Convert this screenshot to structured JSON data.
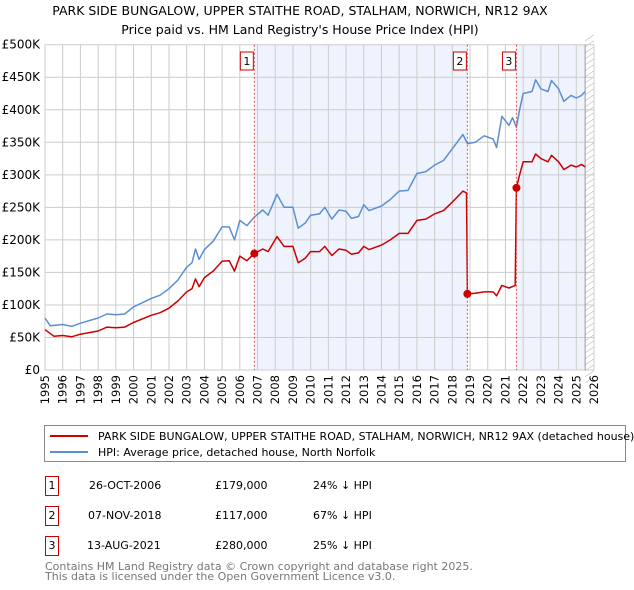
{
  "chart_data": {
    "type": "line",
    "title": "PARK SIDE BUNGALOW, UPPER STAITHE ROAD, STALHAM, NORWICH, NR12 9AX",
    "subtitle": "Price paid vs. HM Land Registry's House Price Index (HPI)",
    "xlim": [
      1995,
      2026
    ],
    "ylim": [
      0,
      500000
    ],
    "x_ticks": [
      "1995",
      "1996",
      "1997",
      "1998",
      "1999",
      "2000",
      "2001",
      "2002",
      "2003",
      "2004",
      "2005",
      "2006",
      "2007",
      "2008",
      "2009",
      "2010",
      "2011",
      "2012",
      "2013",
      "2014",
      "2015",
      "2016",
      "2017",
      "2018",
      "2019",
      "2020",
      "2021",
      "2022",
      "2023",
      "2024",
      "2025",
      "2026"
    ],
    "y_ticks": [
      {
        "v": 0,
        "label": "£0"
      },
      {
        "v": 50000,
        "label": "£50K"
      },
      {
        "v": 100000,
        "label": "£100K"
      },
      {
        "v": 150000,
        "label": "£150K"
      },
      {
        "v": 200000,
        "label": "£200K"
      },
      {
        "v": 250000,
        "label": "£250K"
      },
      {
        "v": 300000,
        "label": "£300K"
      },
      {
        "v": 350000,
        "label": "£350K"
      },
      {
        "v": 400000,
        "label": "£400K"
      },
      {
        "v": 450000,
        "label": "£450K"
      },
      {
        "v": 500000,
        "label": "£500K"
      }
    ],
    "grid": true,
    "shaded_ranges": [
      [
        2006.82,
        2018.85
      ],
      [
        2021.62,
        2025.5
      ]
    ],
    "hatched_from": 2025.5,
    "colors": {
      "price_paid": "#cc0000",
      "hpi": "#5b8fd4",
      "shade": "#eef3fd"
    },
    "series": [
      {
        "name": "PARK SIDE BUNGALOW, UPPER STAITHE ROAD, STALHAM, NORWICH, NR12 9AX (detached house)",
        "key": "price_paid",
        "points": [
          [
            1995,
            62000
          ],
          [
            1995.5,
            52000
          ],
          [
            1996,
            53000
          ],
          [
            1996.5,
            51000
          ],
          [
            1997,
            55000
          ],
          [
            1998,
            60000
          ],
          [
            1998.5,
            66000
          ],
          [
            1999,
            65000
          ],
          [
            1999.5,
            66000
          ],
          [
            2000,
            73000
          ],
          [
            2001,
            84000
          ],
          [
            2001.5,
            88000
          ],
          [
            2002,
            95000
          ],
          [
            2002.5,
            106000
          ],
          [
            2003,
            120000
          ],
          [
            2003.3,
            125000
          ],
          [
            2003.5,
            140000
          ],
          [
            2003.7,
            128000
          ],
          [
            2004,
            142000
          ],
          [
            2004.5,
            152000
          ],
          [
            2005,
            167000
          ],
          [
            2005.4,
            168000
          ],
          [
            2005.7,
            152000
          ],
          [
            2006,
            175000
          ],
          [
            2006.4,
            168000
          ],
          [
            2006.82,
            179000
          ],
          [
            2007.3,
            186000
          ],
          [
            2007.6,
            182000
          ],
          [
            2008.1,
            205000
          ],
          [
            2008.5,
            190000
          ],
          [
            2009,
            190000
          ],
          [
            2009.3,
            165000
          ],
          [
            2009.7,
            172000
          ],
          [
            2010,
            182000
          ],
          [
            2010.5,
            182000
          ],
          [
            2010.8,
            190000
          ],
          [
            2011.2,
            176000
          ],
          [
            2011.6,
            186000
          ],
          [
            2012,
            184000
          ],
          [
            2012.3,
            178000
          ],
          [
            2012.7,
            180000
          ],
          [
            2013,
            190000
          ],
          [
            2013.3,
            185000
          ],
          [
            2014,
            192000
          ],
          [
            2014.5,
            200000
          ],
          [
            2015,
            210000
          ],
          [
            2015.5,
            210000
          ],
          [
            2016,
            230000
          ],
          [
            2016.5,
            232000
          ],
          [
            2017,
            240000
          ],
          [
            2017.5,
            245000
          ],
          [
            2018,
            258000
          ],
          [
            2018.6,
            275000
          ],
          [
            2018.8,
            272000
          ],
          [
            2018.85,
            117000
          ],
          [
            2019.3,
            118000
          ],
          [
            2019.8,
            120000
          ],
          [
            2020.3,
            120000
          ],
          [
            2020.5,
            114000
          ],
          [
            2020.8,
            130000
          ],
          [
            2021.2,
            126000
          ],
          [
            2021.55,
            130000
          ],
          [
            2021.62,
            280000
          ],
          [
            2021.8,
            300000
          ],
          [
            2022,
            320000
          ],
          [
            2022.5,
            320000
          ],
          [
            2022.7,
            332000
          ],
          [
            2023,
            325000
          ],
          [
            2023.4,
            320000
          ],
          [
            2023.6,
            330000
          ],
          [
            2024,
            320000
          ],
          [
            2024.3,
            308000
          ],
          [
            2024.7,
            315000
          ],
          [
            2025,
            312000
          ],
          [
            2025.3,
            316000
          ],
          [
            2025.5,
            312000
          ]
        ]
      },
      {
        "name": "HPI: Average price, detached house, North Norfolk",
        "key": "hpi",
        "points": [
          [
            1995,
            80000
          ],
          [
            1995.3,
            68000
          ],
          [
            1996,
            70000
          ],
          [
            1996.5,
            67000
          ],
          [
            1997,
            72000
          ],
          [
            1998,
            80000
          ],
          [
            1998.5,
            86000
          ],
          [
            1999,
            85000
          ],
          [
            1999.5,
            86000
          ],
          [
            2000,
            97000
          ],
          [
            2001,
            110000
          ],
          [
            2001.5,
            115000
          ],
          [
            2002,
            125000
          ],
          [
            2002.5,
            138000
          ],
          [
            2003,
            158000
          ],
          [
            2003.3,
            165000
          ],
          [
            2003.5,
            186000
          ],
          [
            2003.7,
            170000
          ],
          [
            2004,
            185000
          ],
          [
            2004.5,
            198000
          ],
          [
            2005,
            220000
          ],
          [
            2005.4,
            220000
          ],
          [
            2005.7,
            200000
          ],
          [
            2006,
            230000
          ],
          [
            2006.4,
            222000
          ],
          [
            2006.82,
            235000
          ],
          [
            2007.3,
            246000
          ],
          [
            2007.6,
            238000
          ],
          [
            2008.1,
            270000
          ],
          [
            2008.5,
            250000
          ],
          [
            2009,
            250000
          ],
          [
            2009.3,
            218000
          ],
          [
            2009.7,
            226000
          ],
          [
            2010,
            238000
          ],
          [
            2010.5,
            240000
          ],
          [
            2010.8,
            250000
          ],
          [
            2011.2,
            232000
          ],
          [
            2011.6,
            246000
          ],
          [
            2012,
            244000
          ],
          [
            2012.3,
            233000
          ],
          [
            2012.7,
            236000
          ],
          [
            2013,
            254000
          ],
          [
            2013.3,
            245000
          ],
          [
            2014,
            252000
          ],
          [
            2014.5,
            262000
          ],
          [
            2015,
            275000
          ],
          [
            2015.5,
            276000
          ],
          [
            2016,
            302000
          ],
          [
            2016.5,
            305000
          ],
          [
            2017,
            315000
          ],
          [
            2017.5,
            322000
          ],
          [
            2018,
            340000
          ],
          [
            2018.6,
            362000
          ],
          [
            2018.85,
            348000
          ],
          [
            2019.3,
            350000
          ],
          [
            2019.8,
            360000
          ],
          [
            2020.3,
            355000
          ],
          [
            2020.5,
            342000
          ],
          [
            2020.8,
            390000
          ],
          [
            2021.2,
            376000
          ],
          [
            2021.4,
            388000
          ],
          [
            2021.62,
            373000
          ],
          [
            2021.8,
            400000
          ],
          [
            2022,
            425000
          ],
          [
            2022.5,
            428000
          ],
          [
            2022.7,
            446000
          ],
          [
            2023,
            432000
          ],
          [
            2023.4,
            428000
          ],
          [
            2023.6,
            445000
          ],
          [
            2024,
            432000
          ],
          [
            2024.3,
            413000
          ],
          [
            2024.7,
            422000
          ],
          [
            2025,
            418000
          ],
          [
            2025.3,
            422000
          ],
          [
            2025.5,
            428000
          ]
        ]
      }
    ],
    "sales": [
      {
        "n": "1",
        "x": 2006.82,
        "price": 179000
      },
      {
        "n": "2",
        "x": 2018.85,
        "price": 117000
      },
      {
        "n": "3",
        "x": 2021.62,
        "price": 280000
      }
    ]
  },
  "legend": {
    "price_paid_label": "PARK SIDE BUNGALOW, UPPER STAITHE ROAD, STALHAM, NORWICH, NR12 9AX (detached house)",
    "hpi_label": "HPI: Average price, detached house, North Norfolk"
  },
  "table": [
    {
      "n": "1",
      "date": "26-OCT-2006",
      "price": "£179,000",
      "hpi": "24% ↓ HPI"
    },
    {
      "n": "2",
      "date": "07-NOV-2018",
      "price": "£117,000",
      "hpi": "67% ↓ HPI"
    },
    {
      "n": "3",
      "date": "13-AUG-2021",
      "price": "£280,000",
      "hpi": "25% ↓ HPI"
    }
  ],
  "footer": {
    "line1": "Contains HM Land Registry data © Crown copyright and database right 2025.",
    "line2": "This data is licensed under the Open Government Licence v3.0."
  }
}
